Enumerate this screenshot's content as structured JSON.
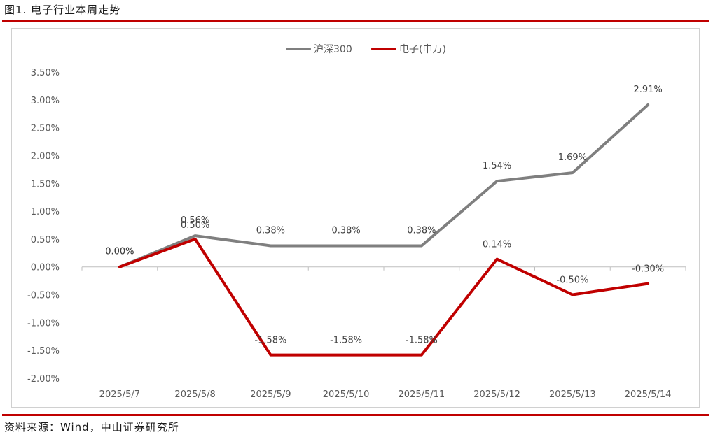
{
  "figure_title": "图1. 电子行业本周走势",
  "source_note": "资料来源：Wind，中山证券研究所",
  "colors": {
    "rule": "#c00000",
    "series_1": "#7f7f7f",
    "series_2": "#c00000"
  },
  "chart_data": {
    "type": "line",
    "title": "",
    "xlabel": "",
    "ylabel": "",
    "categories": [
      "2025/5/7",
      "2025/5/8",
      "2025/5/9",
      "2025/5/10",
      "2025/5/11",
      "2025/5/12",
      "2025/5/13",
      "2025/5/14"
    ],
    "ylim": [
      -2.0,
      3.5
    ],
    "ystep": 0.5,
    "y_format": "percent_2dp",
    "grid": false,
    "legend_position": "top-center",
    "series": [
      {
        "name": "沪深300",
        "color": "#7f7f7f",
        "values": [
          0.0,
          0.56,
          0.38,
          0.38,
          0.38,
          1.54,
          1.69,
          2.91
        ],
        "labels": [
          "0.00%",
          "0.56%",
          "0.38%",
          "0.38%",
          "0.38%",
          "1.54%",
          "1.69%",
          "2.91%"
        ]
      },
      {
        "name": "电子(申万)",
        "color": "#c00000",
        "values": [
          0.0,
          0.5,
          -1.58,
          -1.58,
          -1.58,
          0.14,
          -0.5,
          -0.3
        ],
        "labels": [
          "0.00%",
          "0.50%",
          "-1.58%",
          "-1.58%",
          "-1.58%",
          "0.14%",
          "-0.50%",
          "-0.30%"
        ]
      }
    ]
  }
}
